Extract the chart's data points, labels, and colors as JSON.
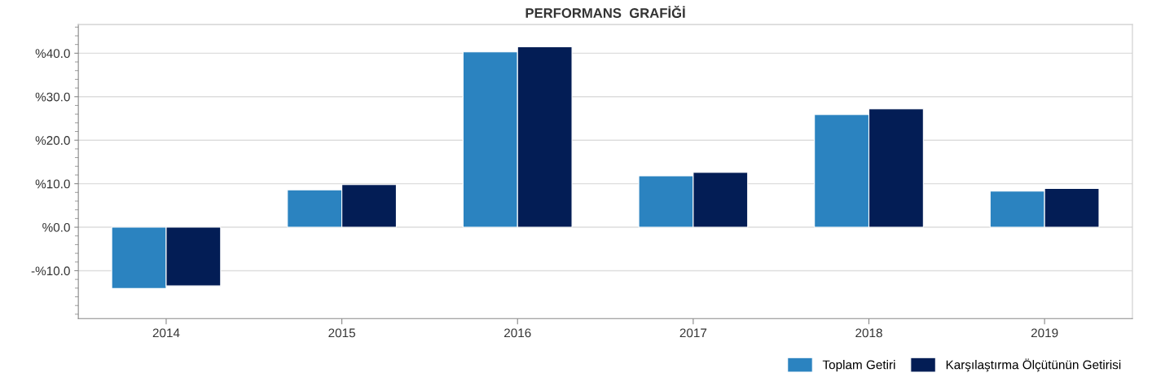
{
  "chart_data": {
    "type": "bar",
    "title": "PERFORMANS  GRAFİĞİ",
    "categories": [
      "2014",
      "2015",
      "2016",
      "2017",
      "2018",
      "2019"
    ],
    "series": [
      {
        "name": "Toplam Getiri",
        "color": "#2b83c0",
        "values": [
          -14.1,
          8.6,
          40.3,
          11.8,
          25.9,
          8.3
        ]
      },
      {
        "name": "Karşılaştırma Ölçütünün Getirisi",
        "color": "#031d55",
        "values": [
          -13.5,
          9.8,
          41.5,
          12.6,
          27.2,
          8.9
        ]
      }
    ],
    "ylim": [
      -21,
      46.6
    ],
    "yticks": [
      {
        "value": -10,
        "label": "-%10.0"
      },
      {
        "value": 0,
        "label": "%0.0"
      },
      {
        "value": 10,
        "label": "%10.0"
      },
      {
        "value": 20,
        "label": "%20.0"
      },
      {
        "value": 30,
        "label": "%30.0"
      },
      {
        "value": 40,
        "label": "%40.0"
      }
    ],
    "grid": "y",
    "legend": "bottom right"
  }
}
